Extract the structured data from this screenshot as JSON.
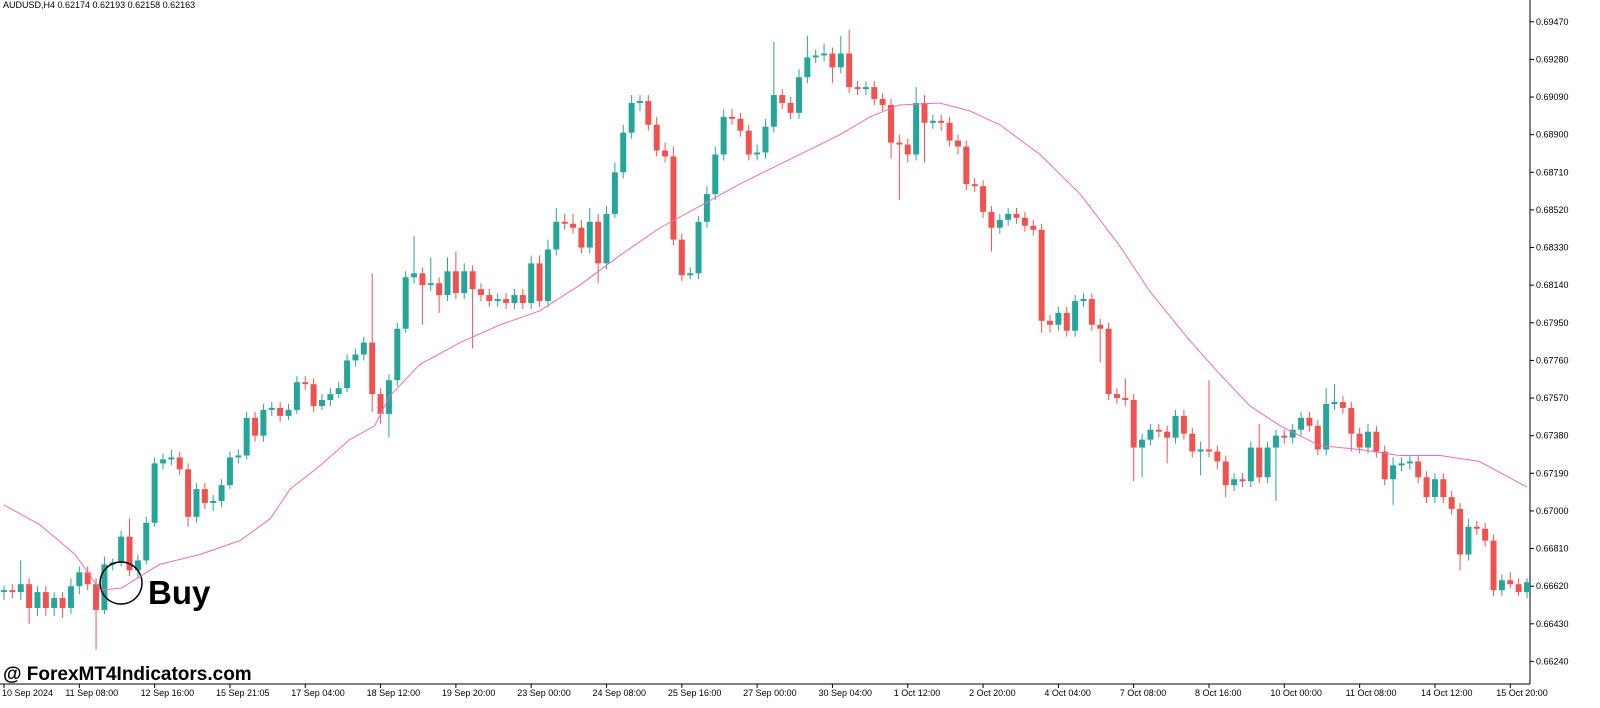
{
  "chart_data": {
    "type": "candlestick",
    "header": "AUDUSD,H4  0.62174 0.62193 0.62158 0.62163",
    "annotation": "Buy",
    "watermark": "@ ForexMT4Indicators.com",
    "up_color": "#26a69a",
    "down_color": "#ef5350",
    "grid": false,
    "ylim": [
      0.66126,
      0.6958
    ],
    "yticks": [
      {
        "value": 0.6947,
        "label": "0.69470"
      },
      {
        "value": 0.6928,
        "label": "0.69280"
      },
      {
        "value": 0.6909,
        "label": "0.69090"
      },
      {
        "value": 0.689,
        "label": "0.68900"
      },
      {
        "value": 0.6871,
        "label": "0.68710"
      },
      {
        "value": 0.6852,
        "label": "0.68520"
      },
      {
        "value": 0.6833,
        "label": "0.68330"
      },
      {
        "value": 0.6814,
        "label": "0.68140"
      },
      {
        "value": 0.6795,
        "label": "0.67950"
      },
      {
        "value": 0.6776,
        "label": "0.67760"
      },
      {
        "value": 0.6757,
        "label": "0.67570"
      },
      {
        "value": 0.6738,
        "label": "0.67380"
      },
      {
        "value": 0.6719,
        "label": "0.67190"
      },
      {
        "value": 0.67,
        "label": "0.67000"
      },
      {
        "value": 0.6681,
        "label": "0.66810"
      },
      {
        "value": 0.6662,
        "label": "0.66620"
      },
      {
        "value": 0.6643,
        "label": "0.66430"
      },
      {
        "value": 0.6624,
        "label": "0.66240"
      }
    ],
    "categories": [
      "10 Sep 2024",
      null,
      null,
      null,
      null,
      null,
      null,
      null,
      null,
      "11 Sep 08:00",
      null,
      null,
      null,
      null,
      null,
      null,
      null,
      null,
      "12 Sep 16:00",
      null,
      null,
      null,
      null,
      null,
      null,
      null,
      null,
      "15 Sep 21:05",
      null,
      null,
      null,
      null,
      null,
      null,
      null,
      null,
      "17 Sep 04:00",
      null,
      null,
      null,
      null,
      null,
      null,
      null,
      null,
      "18 Sep 12:00",
      null,
      null,
      null,
      null,
      null,
      null,
      null,
      null,
      "19 Sep 20:00",
      null,
      null,
      null,
      null,
      null,
      null,
      null,
      null,
      "23 Sep 00:00",
      null,
      null,
      null,
      null,
      null,
      null,
      null,
      null,
      "24 Sep 08:00",
      null,
      null,
      null,
      null,
      null,
      null,
      null,
      null,
      "25 Sep 16:00",
      null,
      null,
      null,
      null,
      null,
      null,
      null,
      null,
      "27 Sep 00:00",
      null,
      null,
      null,
      null,
      null,
      null,
      null,
      null,
      "30 Sep 04:00",
      null,
      null,
      null,
      null,
      null,
      null,
      null,
      null,
      "1 Oct 12:00",
      null,
      null,
      null,
      null,
      null,
      null,
      null,
      null,
      "2 Oct 20:00",
      null,
      null,
      null,
      null,
      null,
      null,
      null,
      null,
      "4 Oct 04:00",
      null,
      null,
      null,
      null,
      null,
      null,
      null,
      null,
      "7 Oct 08:00",
      null,
      null,
      null,
      null,
      null,
      null,
      null,
      null,
      "8 Oct 16:00",
      null,
      null,
      null,
      null,
      null,
      null,
      null,
      null,
      "10 Oct 00:00",
      null,
      null,
      null,
      null,
      null,
      null,
      null,
      null,
      "11 Oct 08:00",
      null,
      null,
      null,
      null,
      null,
      null,
      null,
      null,
      "14 Oct 12:00",
      null,
      null,
      null,
      null,
      null,
      null,
      null,
      null,
      "15 Oct 20:00",
      null,
      null
    ],
    "candles": [
      [
        0.6659,
        0.6662,
        0.6655,
        0.666
      ],
      [
        0.666,
        0.6663,
        0.6656,
        0.6659
      ],
      [
        0.6659,
        0.6675,
        0.6655,
        0.6663
      ],
      [
        0.6663,
        0.6666,
        0.6643,
        0.6651
      ],
      [
        0.6651,
        0.6662,
        0.6647,
        0.6659
      ],
      [
        0.6659,
        0.6662,
        0.6647,
        0.6651
      ],
      [
        0.6651,
        0.6659,
        0.6647,
        0.6656
      ],
      [
        0.6656,
        0.6659,
        0.6646,
        0.6651
      ],
      [
        0.6651,
        0.6666,
        0.6648,
        0.6662
      ],
      [
        0.6662,
        0.6672,
        0.6658,
        0.6669
      ],
      [
        0.6669,
        0.6672,
        0.666,
        0.6663
      ],
      [
        0.6663,
        0.6666,
        0.663,
        0.665
      ],
      [
        0.665,
        0.6677,
        0.6648,
        0.6673
      ],
      [
        0.6673,
        0.6676,
        0.667,
        0.6674
      ],
      [
        0.6674,
        0.669,
        0.6672,
        0.6687
      ],
      [
        0.6687,
        0.6696,
        0.6667,
        0.667
      ],
      [
        0.667,
        0.6678,
        0.6666,
        0.6675
      ],
      [
        0.6675,
        0.6697,
        0.6673,
        0.6694
      ],
      [
        0.6694,
        0.6727,
        0.6692,
        0.6724
      ],
      [
        0.6724,
        0.6729,
        0.6721,
        0.6726
      ],
      [
        0.6726,
        0.6731,
        0.6723,
        0.6727
      ],
      [
        0.6727,
        0.673,
        0.6718,
        0.6721
      ],
      [
        0.6721,
        0.6724,
        0.6692,
        0.6697
      ],
      [
        0.6697,
        0.6714,
        0.6694,
        0.6711
      ],
      [
        0.6711,
        0.6714,
        0.6701,
        0.6704
      ],
      [
        0.6704,
        0.6708,
        0.67,
        0.6705
      ],
      [
        0.6705,
        0.6716,
        0.6702,
        0.6713
      ],
      [
        0.6713,
        0.673,
        0.6711,
        0.6727
      ],
      [
        0.6727,
        0.6731,
        0.6724,
        0.6728
      ],
      [
        0.6728,
        0.675,
        0.6726,
        0.6747
      ],
      [
        0.6747,
        0.675,
        0.6735,
        0.6738
      ],
      [
        0.6738,
        0.6754,
        0.6735,
        0.6751
      ],
      [
        0.6751,
        0.6755,
        0.6748,
        0.6752
      ],
      [
        0.6752,
        0.6755,
        0.6745,
        0.6748
      ],
      [
        0.6748,
        0.6754,
        0.6746,
        0.6751
      ],
      [
        0.6751,
        0.6768,
        0.6749,
        0.6765
      ],
      [
        0.6765,
        0.6768,
        0.6761,
        0.6764
      ],
      [
        0.6764,
        0.6767,
        0.675,
        0.6753
      ],
      [
        0.6753,
        0.6759,
        0.6751,
        0.6756
      ],
      [
        0.6756,
        0.6762,
        0.6753,
        0.6759
      ],
      [
        0.6759,
        0.6765,
        0.6757,
        0.6762
      ],
      [
        0.6762,
        0.6779,
        0.676,
        0.6776
      ],
      [
        0.6776,
        0.6782,
        0.6773,
        0.6779
      ],
      [
        0.6779,
        0.6788,
        0.6776,
        0.6785
      ],
      [
        0.6785,
        0.682,
        0.675,
        0.6759
      ],
      [
        0.6759,
        0.6762,
        0.6744,
        0.6749
      ],
      [
        0.6749,
        0.6769,
        0.6737,
        0.6766
      ],
      [
        0.6766,
        0.6795,
        0.6763,
        0.6792
      ],
      [
        0.6792,
        0.6821,
        0.679,
        0.6818
      ],
      [
        0.6818,
        0.6839,
        0.6815,
        0.682
      ],
      [
        0.682,
        0.6823,
        0.6794,
        0.6814
      ],
      [
        0.6814,
        0.6828,
        0.6811,
        0.6815
      ],
      [
        0.6815,
        0.6818,
        0.68,
        0.6809
      ],
      [
        0.6809,
        0.6828,
        0.6806,
        0.6821
      ],
      [
        0.6821,
        0.6831,
        0.6807,
        0.681
      ],
      [
        0.681,
        0.6825,
        0.6807,
        0.6821
      ],
      [
        0.6821,
        0.6824,
        0.6782,
        0.6812
      ],
      [
        0.6812,
        0.6815,
        0.6806,
        0.6809
      ],
      [
        0.6809,
        0.6812,
        0.6803,
        0.6806
      ],
      [
        0.6806,
        0.681,
        0.6803,
        0.6807
      ],
      [
        0.6807,
        0.681,
        0.6802,
        0.6805
      ],
      [
        0.6805,
        0.6812,
        0.6802,
        0.6809
      ],
      [
        0.6809,
        0.6812,
        0.6802,
        0.6805
      ],
      [
        0.6805,
        0.6829,
        0.6802,
        0.6825
      ],
      [
        0.6825,
        0.6829,
        0.6803,
        0.6806
      ],
      [
        0.6806,
        0.6837,
        0.6803,
        0.6832
      ],
      [
        0.6832,
        0.6853,
        0.6829,
        0.6846
      ],
      [
        0.6846,
        0.685,
        0.6842,
        0.6845
      ],
      [
        0.6845,
        0.685,
        0.684,
        0.6843
      ],
      [
        0.6843,
        0.6847,
        0.683,
        0.6833
      ],
      [
        0.6833,
        0.6853,
        0.683,
        0.6846
      ],
      [
        0.6846,
        0.685,
        0.6815,
        0.6825
      ],
      [
        0.6825,
        0.6854,
        0.6822,
        0.685
      ],
      [
        0.685,
        0.6876,
        0.6848,
        0.6871
      ],
      [
        0.6871,
        0.6895,
        0.6868,
        0.6891
      ],
      [
        0.6891,
        0.691,
        0.6888,
        0.6906
      ],
      [
        0.6906,
        0.691,
        0.6902,
        0.6907
      ],
      [
        0.6907,
        0.691,
        0.6892,
        0.6895
      ],
      [
        0.6895,
        0.6899,
        0.6879,
        0.6882
      ],
      [
        0.6882,
        0.6886,
        0.6876,
        0.6879
      ],
      [
        0.6879,
        0.6884,
        0.6834,
        0.6837
      ],
      [
        0.6837,
        0.684,
        0.6816,
        0.6819
      ],
      [
        0.6819,
        0.6823,
        0.6817,
        0.682
      ],
      [
        0.682,
        0.6849,
        0.6817,
        0.6846
      ],
      [
        0.6846,
        0.6864,
        0.6843,
        0.686
      ],
      [
        0.686,
        0.6884,
        0.6857,
        0.688
      ],
      [
        0.688,
        0.6903,
        0.6877,
        0.6899
      ],
      [
        0.6899,
        0.6903,
        0.6895,
        0.6898
      ],
      [
        0.6898,
        0.6901,
        0.6889,
        0.6892
      ],
      [
        0.6892,
        0.6895,
        0.6877,
        0.688
      ],
      [
        0.688,
        0.6885,
        0.6877,
        0.6881
      ],
      [
        0.6881,
        0.6898,
        0.6878,
        0.6894
      ],
      [
        0.6894,
        0.6937,
        0.6891,
        0.691
      ],
      [
        0.691,
        0.6913,
        0.6903,
        0.6906
      ],
      [
        0.6906,
        0.6909,
        0.6898,
        0.6901
      ],
      [
        0.6901,
        0.6923,
        0.6898,
        0.6919
      ],
      [
        0.6919,
        0.694,
        0.6916,
        0.6929
      ],
      [
        0.6929,
        0.6933,
        0.6926,
        0.693
      ],
      [
        0.693,
        0.6936,
        0.6927,
        0.6931
      ],
      [
        0.6931,
        0.6934,
        0.6916,
        0.6924
      ],
      [
        0.6924,
        0.694,
        0.6921,
        0.6931
      ],
      [
        0.6931,
        0.6943,
        0.6911,
        0.6914
      ],
      [
        0.6914,
        0.6917,
        0.691,
        0.6913
      ],
      [
        0.6913,
        0.6917,
        0.691,
        0.6914
      ],
      [
        0.6914,
        0.6917,
        0.6905,
        0.6908
      ],
      [
        0.6908,
        0.6911,
        0.6902,
        0.6905
      ],
      [
        0.6905,
        0.6908,
        0.6878,
        0.6886
      ],
      [
        0.6886,
        0.689,
        0.6857,
        0.6885
      ],
      [
        0.6885,
        0.6888,
        0.6876,
        0.688
      ],
      [
        0.688,
        0.6914,
        0.6877,
        0.6906
      ],
      [
        0.6906,
        0.691,
        0.6876,
        0.6896
      ],
      [
        0.6896,
        0.69,
        0.6893,
        0.6897
      ],
      [
        0.6897,
        0.69,
        0.6892,
        0.6896
      ],
      [
        0.6896,
        0.6899,
        0.6884,
        0.6887
      ],
      [
        0.6887,
        0.689,
        0.688,
        0.6884
      ],
      [
        0.6884,
        0.6887,
        0.6862,
        0.6865
      ],
      [
        0.6865,
        0.6868,
        0.6861,
        0.6864
      ],
      [
        0.6864,
        0.6867,
        0.6848,
        0.6851
      ],
      [
        0.6851,
        0.6854,
        0.6831,
        0.6843
      ],
      [
        0.6843,
        0.685,
        0.684,
        0.6847
      ],
      [
        0.6847,
        0.6853,
        0.6844,
        0.685
      ],
      [
        0.685,
        0.6853,
        0.6845,
        0.6848
      ],
      [
        0.6848,
        0.6851,
        0.6841,
        0.6844
      ],
      [
        0.6844,
        0.6847,
        0.6839,
        0.6842
      ],
      [
        0.6842,
        0.6845,
        0.679,
        0.6796
      ],
      [
        0.6796,
        0.6799,
        0.679,
        0.6794
      ],
      [
        0.6794,
        0.6803,
        0.6791,
        0.68
      ],
      [
        0.68,
        0.6803,
        0.6788,
        0.6791
      ],
      [
        0.6791,
        0.6809,
        0.6788,
        0.6806
      ],
      [
        0.6806,
        0.681,
        0.6803,
        0.6807
      ],
      [
        0.6807,
        0.681,
        0.6791,
        0.6794
      ],
      [
        0.6794,
        0.6797,
        0.6775,
        0.6792
      ],
      [
        0.6792,
        0.6795,
        0.6756,
        0.6759
      ],
      [
        0.6759,
        0.6762,
        0.6754,
        0.6757
      ],
      [
        0.6757,
        0.6767,
        0.6753,
        0.6756
      ],
      [
        0.6756,
        0.6759,
        0.6715,
        0.6732
      ],
      [
        0.6732,
        0.6739,
        0.6717,
        0.6736
      ],
      [
        0.6736,
        0.6744,
        0.6733,
        0.6741
      ],
      [
        0.6741,
        0.6744,
        0.6737,
        0.674
      ],
      [
        0.674,
        0.6743,
        0.6724,
        0.6737
      ],
      [
        0.6737,
        0.6751,
        0.6734,
        0.6748
      ],
      [
        0.6748,
        0.6751,
        0.6736,
        0.6739
      ],
      [
        0.6739,
        0.6742,
        0.6727,
        0.673
      ],
      [
        0.673,
        0.6735,
        0.6718,
        0.6731
      ],
      [
        0.6731,
        0.6766,
        0.6727,
        0.673
      ],
      [
        0.673,
        0.6733,
        0.6721,
        0.6725
      ],
      [
        0.6725,
        0.6728,
        0.6707,
        0.6713
      ],
      [
        0.6713,
        0.6719,
        0.671,
        0.6716
      ],
      [
        0.6716,
        0.6719,
        0.6712,
        0.6715
      ],
      [
        0.6715,
        0.6735,
        0.6712,
        0.6732
      ],
      [
        0.6732,
        0.6744,
        0.6714,
        0.6717
      ],
      [
        0.6717,
        0.6735,
        0.6714,
        0.6732
      ],
      [
        0.6732,
        0.6741,
        0.6705,
        0.6738
      ],
      [
        0.6738,
        0.6741,
        0.6734,
        0.6737
      ],
      [
        0.6737,
        0.6744,
        0.6734,
        0.6741
      ],
      [
        0.6741,
        0.675,
        0.6738,
        0.6747
      ],
      [
        0.6747,
        0.675,
        0.674,
        0.6743
      ],
      [
        0.6743,
        0.6746,
        0.6728,
        0.6731
      ],
      [
        0.6731,
        0.6762,
        0.6728,
        0.6754
      ],
      [
        0.6754,
        0.6764,
        0.6751,
        0.6755
      ],
      [
        0.6755,
        0.6758,
        0.6749,
        0.6752
      ],
      [
        0.6752,
        0.6755,
        0.673,
        0.6739
      ],
      [
        0.6739,
        0.6742,
        0.6729,
        0.6732
      ],
      [
        0.6732,
        0.6744,
        0.6729,
        0.674
      ],
      [
        0.674,
        0.6743,
        0.6727,
        0.673
      ],
      [
        0.673,
        0.6733,
        0.6713,
        0.6716
      ],
      [
        0.6716,
        0.6727,
        0.6703,
        0.6723
      ],
      [
        0.6723,
        0.6727,
        0.672,
        0.6724
      ],
      [
        0.6724,
        0.6728,
        0.6721,
        0.6725
      ],
      [
        0.6725,
        0.6728,
        0.6714,
        0.6717
      ],
      [
        0.6717,
        0.672,
        0.6704,
        0.6707
      ],
      [
        0.6707,
        0.6719,
        0.6704,
        0.6716
      ],
      [
        0.6716,
        0.6719,
        0.6704,
        0.6707
      ],
      [
        0.6707,
        0.671,
        0.6698,
        0.6701
      ],
      [
        0.6701,
        0.6704,
        0.667,
        0.6678
      ],
      [
        0.6678,
        0.6696,
        0.6675,
        0.6692
      ],
      [
        0.6692,
        0.6695,
        0.6688,
        0.6691
      ],
      [
        0.6691,
        0.6694,
        0.6682,
        0.6685
      ],
      [
        0.6685,
        0.6688,
        0.6657,
        0.666
      ],
      [
        0.666,
        0.6668,
        0.6657,
        0.6665
      ],
      [
        0.6665,
        0.6669,
        0.6661,
        0.6663
      ],
      [
        0.6663,
        0.6666,
        0.6657,
        0.6659
      ],
      [
        0.6659,
        0.6666,
        0.6656,
        0.6664
      ]
    ],
    "ma": {
      "color": "#f26bb8",
      "x": [
        0,
        4.3,
        8.5,
        11.5,
        14,
        18.6,
        23.4,
        28.2,
        31.8,
        34.2,
        37.8,
        41.3,
        44.3,
        46.1,
        49.7,
        54.5,
        59.3,
        64,
        68.8,
        73.6,
        78.4,
        83.2,
        87.9,
        95.1,
        99.9,
        103.5,
        107,
        111.8,
        115.4,
        119,
        123.8,
        128.6,
        133.3,
        136.9,
        141.7,
        145.3,
        148.9,
        152.5,
        157.2,
        162,
        166.8,
        171.6,
        176.3,
        182
      ],
      "values": [
        0.6703,
        0.6693,
        0.6678,
        0.666,
        0.6661,
        0.6673,
        0.6678,
        0.6685,
        0.6696,
        0.6711,
        0.6723,
        0.6736,
        0.6743,
        0.6758,
        0.6774,
        0.6785,
        0.6794,
        0.6801,
        0.6814,
        0.6829,
        0.6843,
        0.6854,
        0.6865,
        0.688,
        0.689,
        0.6899,
        0.6905,
        0.6906,
        0.6902,
        0.6895,
        0.688,
        0.686,
        0.6834,
        0.6811,
        0.6786,
        0.6769,
        0.6753,
        0.6743,
        0.6733,
        0.6731,
        0.6728,
        0.6728,
        0.6725,
        0.6712
      ]
    }
  }
}
